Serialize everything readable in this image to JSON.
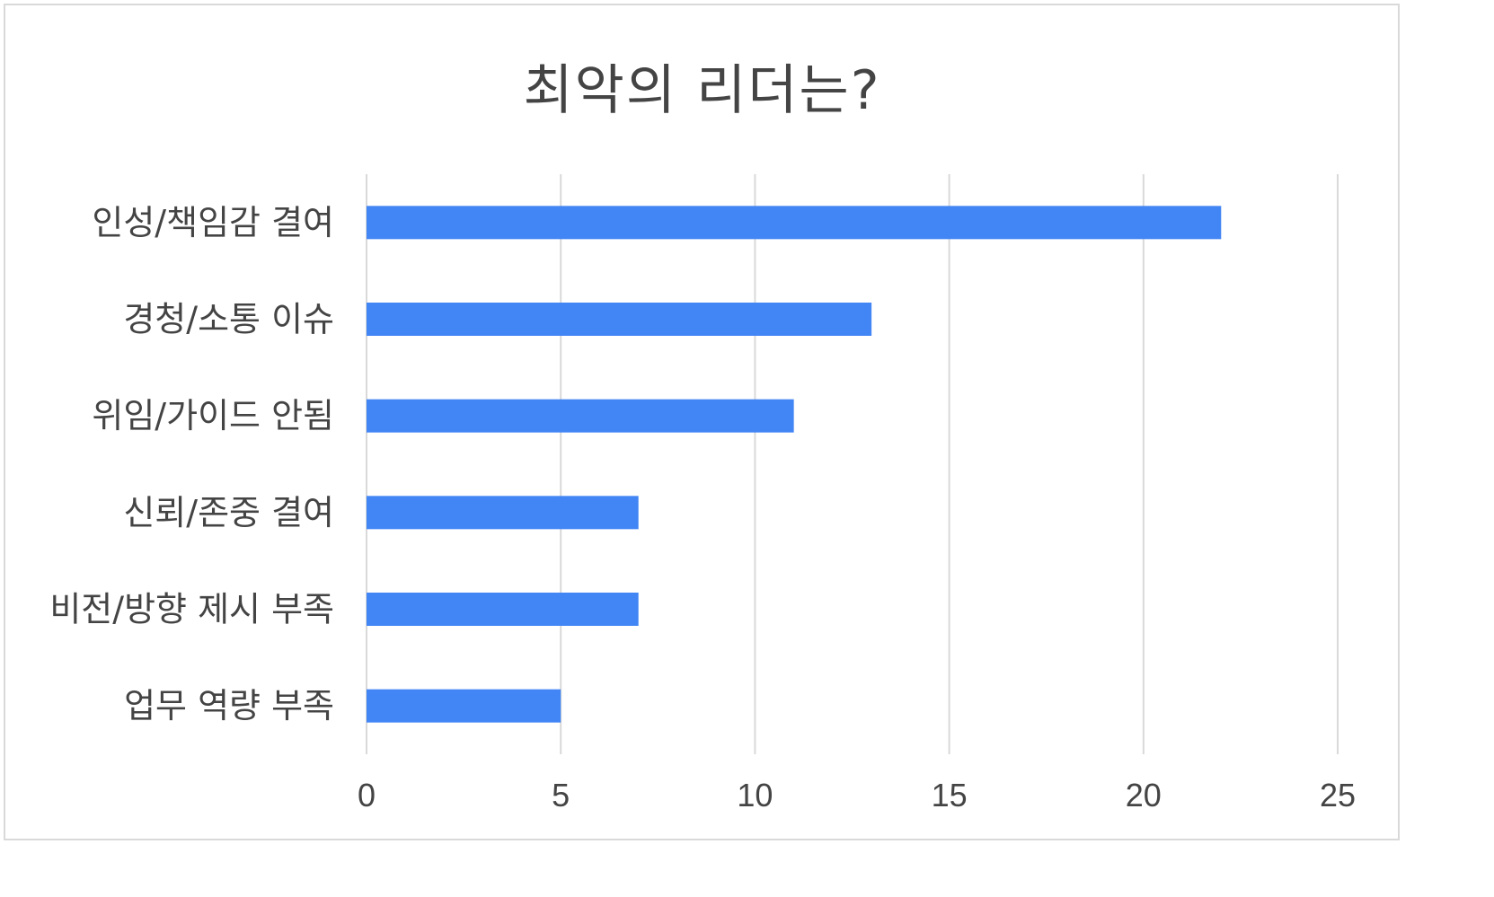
{
  "chart_data": {
    "type": "bar",
    "orientation": "horizontal",
    "title": "최악의 리더는?",
    "xlabel": "",
    "ylabel": "",
    "categories": [
      "인성/책임감 결여",
      "경청/소통 이슈",
      "위임/가이드 안됨",
      "신뢰/존중 결여",
      "비전/방향 제시 부족",
      "업무 역량 부족"
    ],
    "values": [
      22,
      13,
      11,
      7,
      7,
      5
    ],
    "xlim": [
      0,
      25
    ],
    "xticks": [
      "0",
      "5",
      "10",
      "15",
      "20",
      "25"
    ],
    "grid": true,
    "legend": "none",
    "bar_color": "#4285f4",
    "grid_color": "#d9d9d9"
  }
}
